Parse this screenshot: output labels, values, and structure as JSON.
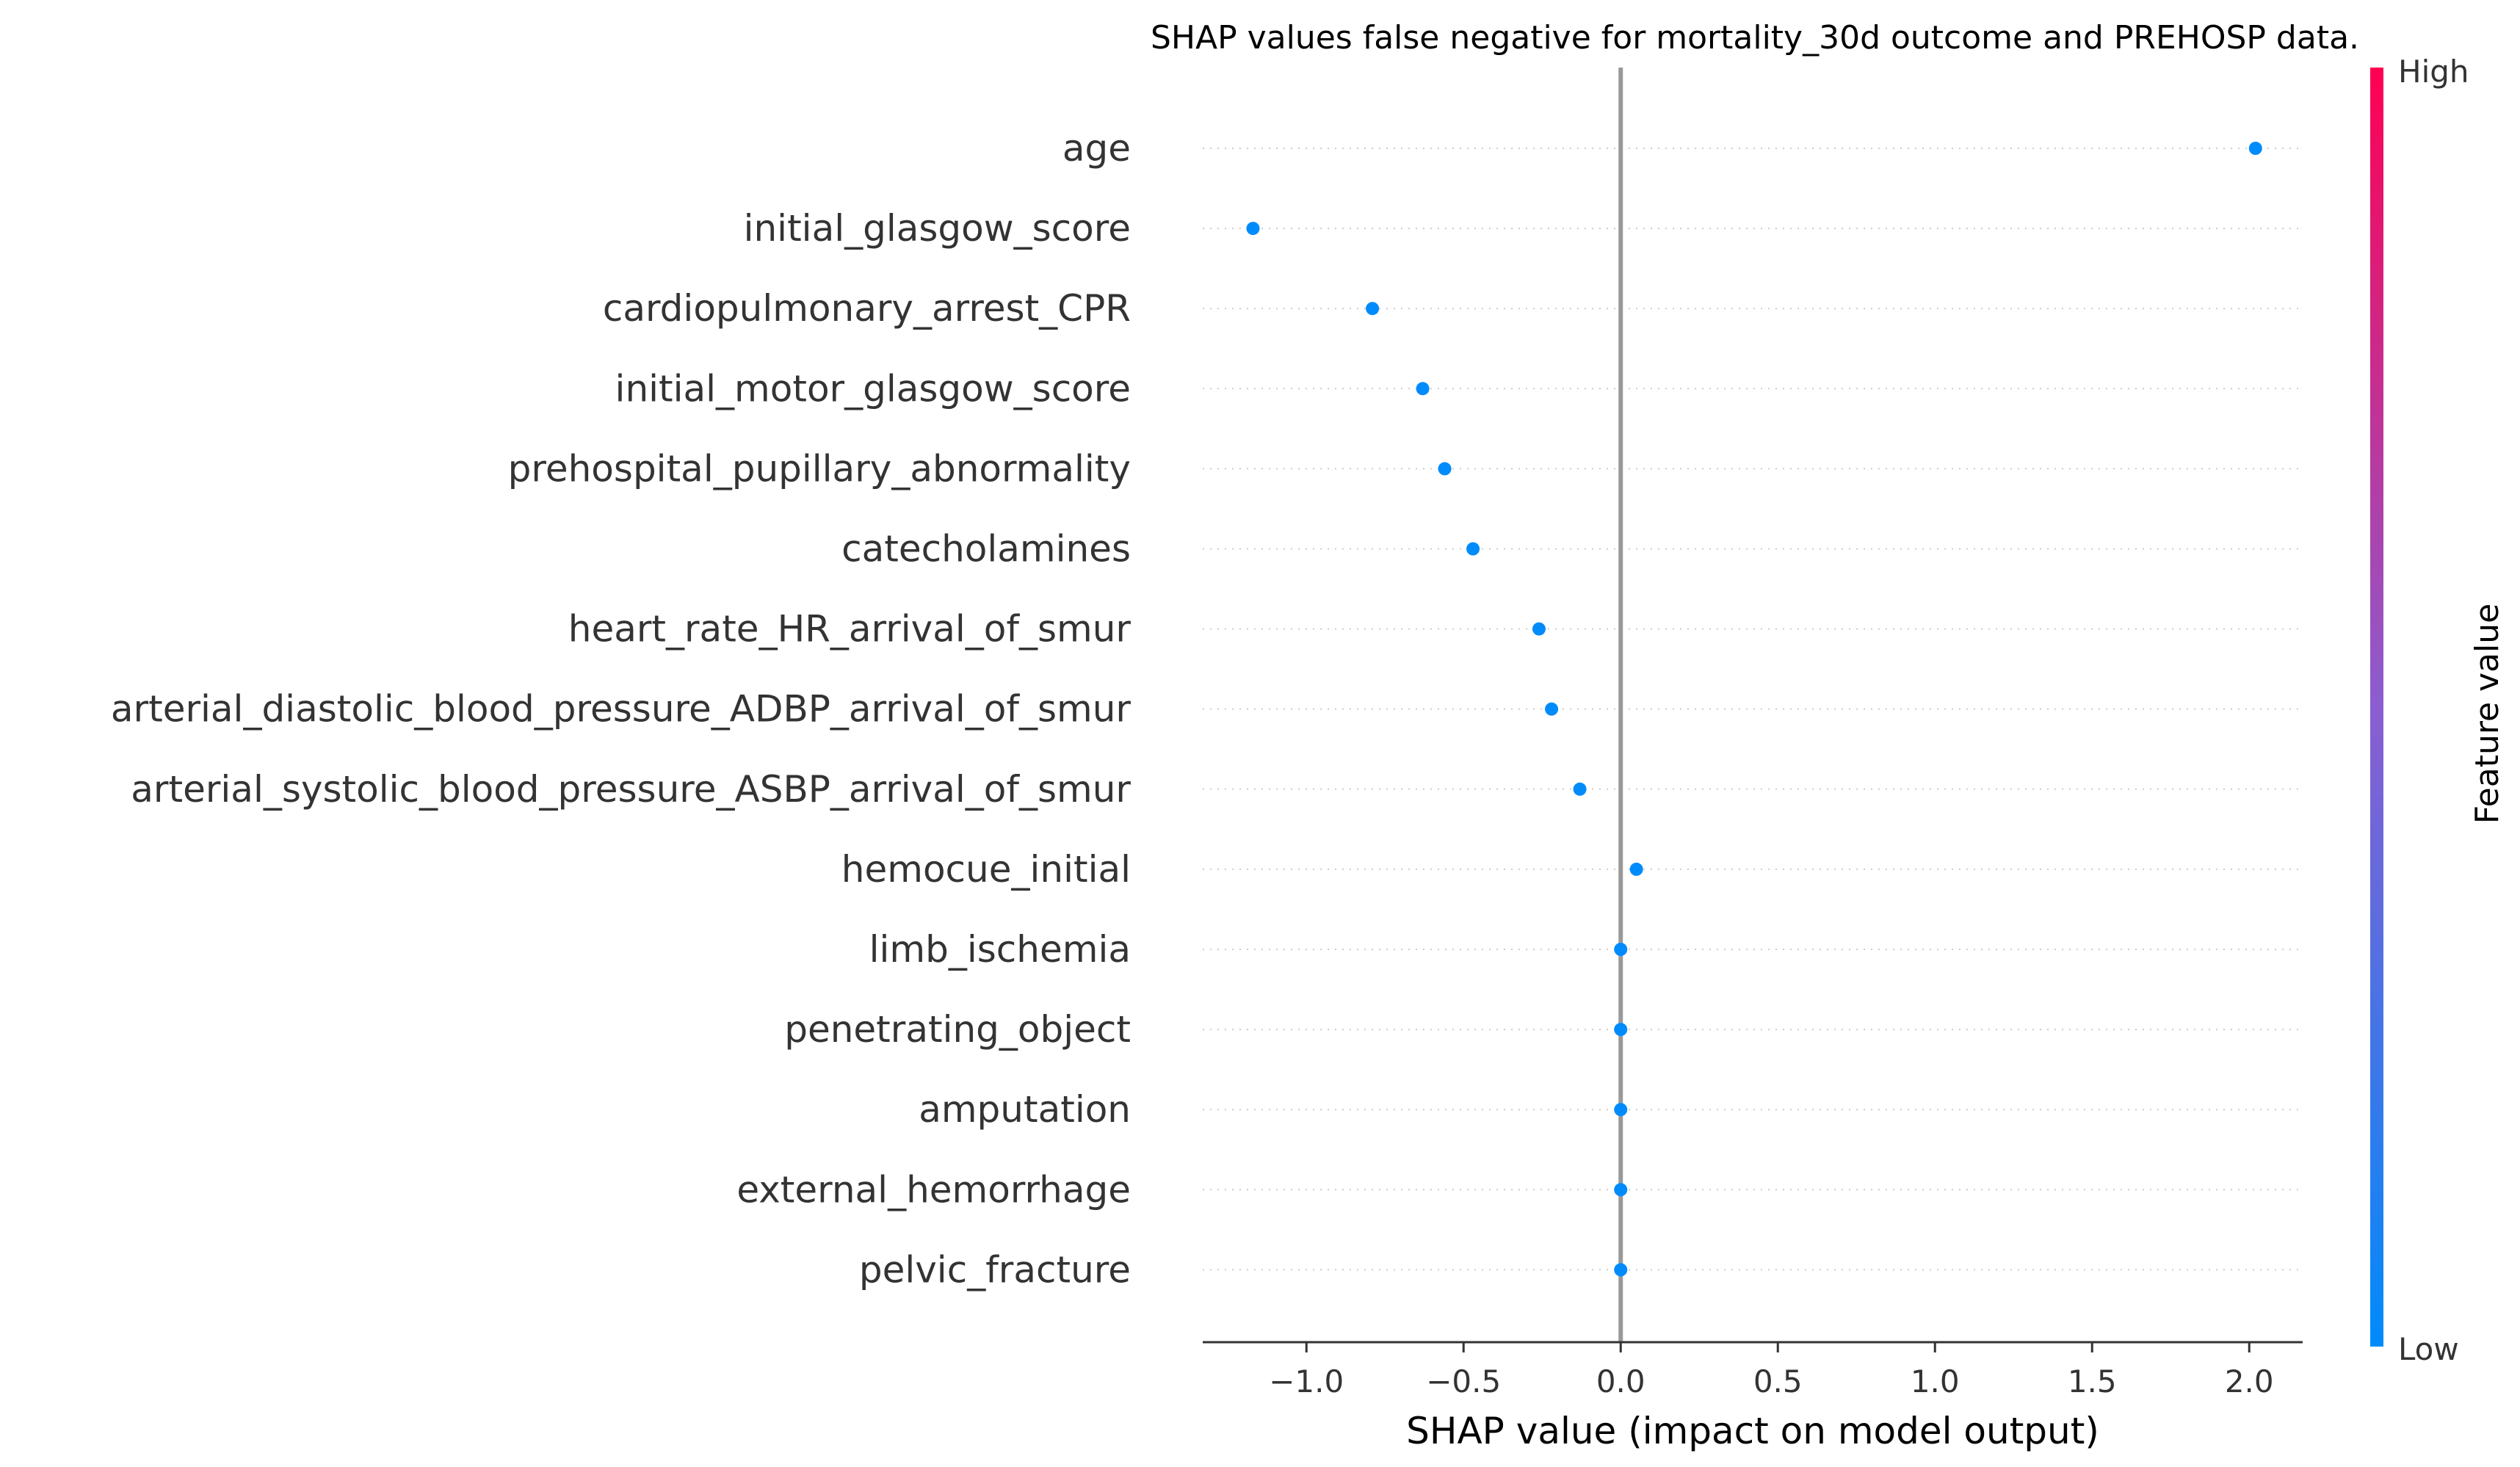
{
  "chart_data": {
    "type": "scatter",
    "title": "SHAP values false negative for mortality_30d outcome and PREHOSP data.",
    "xlabel": "SHAP value (impact on model output)",
    "ylabel": "",
    "xlim": [
      -1.33,
      2.17
    ],
    "xticks": [
      -1.0,
      -0.5,
      0.0,
      0.5,
      1.0,
      1.5,
      2.0
    ],
    "xtick_labels": [
      "−1.0",
      "−0.5",
      "0.0",
      "0.5",
      "1.0",
      "1.5",
      "2.0"
    ],
    "features": [
      "age",
      "initial_glasgow_score",
      "cardiopulmonary_arrest_CPR",
      "initial_motor_glasgow_score",
      "prehospital_pupillary_abnormality",
      "catecholamines",
      "heart_rate_HR_arrival_of_smur",
      "arterial_diastolic_blood_pressure_ADBP_arrival_of_smur",
      "arterial_systolic_blood_pressure_ASBP_arrival_of_smur",
      "hemocue_initial",
      "limb_ischemia",
      "penetrating_object",
      "amputation",
      "external_hemorrhage",
      "pelvic_fracture"
    ],
    "values": [
      2.02,
      -1.17,
      -0.79,
      -0.63,
      -0.56,
      -0.47,
      -0.26,
      -0.22,
      -0.13,
      0.05,
      0.0,
      0.0,
      0.0,
      0.0,
      0.0
    ],
    "point_color": "#008bfb",
    "colorbar": {
      "label": "Feature value",
      "high_label": "High",
      "low_label": "Low",
      "high_color": "#ff0052",
      "low_color": "#008bfb"
    },
    "grid": false,
    "legend": "colorbar-right"
  }
}
